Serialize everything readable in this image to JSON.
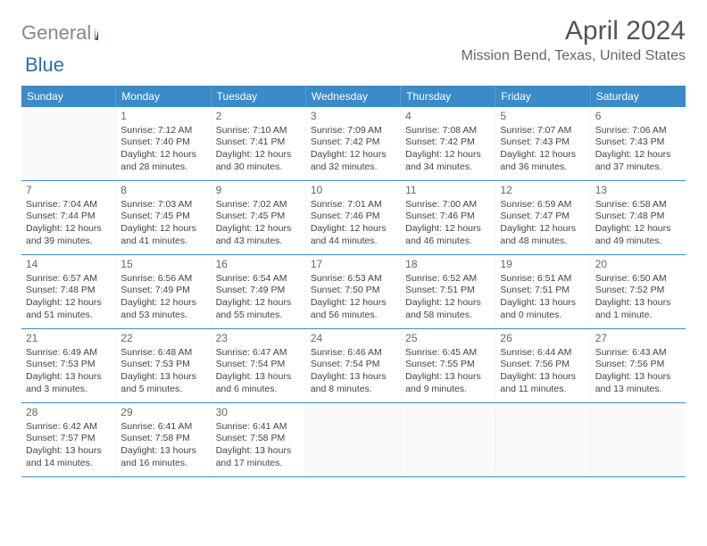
{
  "brand": {
    "part1": "General",
    "part2": "Blue"
  },
  "title": "April 2024",
  "location": "Mission Bend, Texas, United States",
  "colors": {
    "header_bg": "#3b8bc9",
    "header_text": "#ffffff",
    "border": "#3b8bc9",
    "text": "#444444",
    "title_text": "#555555",
    "location_text": "#666666",
    "logo_gray": "#888888",
    "logo_blue": "#2a6fb0",
    "background": "#ffffff"
  },
  "typography": {
    "title_fontsize": 30,
    "location_fontsize": 16,
    "dow_fontsize": 12,
    "cell_fontsize": 10.5
  },
  "days_of_week": [
    "Sunday",
    "Monday",
    "Tuesday",
    "Wednesday",
    "Thursday",
    "Friday",
    "Saturday"
  ],
  "labels": {
    "sunrise": "Sunrise:",
    "sunset": "Sunset:",
    "daylight": "Daylight:"
  },
  "weeks": [
    [
      null,
      {
        "n": "1",
        "sr": "7:12 AM",
        "ss": "7:40 PM",
        "dl": "12 hours and 28 minutes."
      },
      {
        "n": "2",
        "sr": "7:10 AM",
        "ss": "7:41 PM",
        "dl": "12 hours and 30 minutes."
      },
      {
        "n": "3",
        "sr": "7:09 AM",
        "ss": "7:42 PM",
        "dl": "12 hours and 32 minutes."
      },
      {
        "n": "4",
        "sr": "7:08 AM",
        "ss": "7:42 PM",
        "dl": "12 hours and 34 minutes."
      },
      {
        "n": "5",
        "sr": "7:07 AM",
        "ss": "7:43 PM",
        "dl": "12 hours and 36 minutes."
      },
      {
        "n": "6",
        "sr": "7:06 AM",
        "ss": "7:43 PM",
        "dl": "12 hours and 37 minutes."
      }
    ],
    [
      {
        "n": "7",
        "sr": "7:04 AM",
        "ss": "7:44 PM",
        "dl": "12 hours and 39 minutes."
      },
      {
        "n": "8",
        "sr": "7:03 AM",
        "ss": "7:45 PM",
        "dl": "12 hours and 41 minutes."
      },
      {
        "n": "9",
        "sr": "7:02 AM",
        "ss": "7:45 PM",
        "dl": "12 hours and 43 minutes."
      },
      {
        "n": "10",
        "sr": "7:01 AM",
        "ss": "7:46 PM",
        "dl": "12 hours and 44 minutes."
      },
      {
        "n": "11",
        "sr": "7:00 AM",
        "ss": "7:46 PM",
        "dl": "12 hours and 46 minutes."
      },
      {
        "n": "12",
        "sr": "6:59 AM",
        "ss": "7:47 PM",
        "dl": "12 hours and 48 minutes."
      },
      {
        "n": "13",
        "sr": "6:58 AM",
        "ss": "7:48 PM",
        "dl": "12 hours and 49 minutes."
      }
    ],
    [
      {
        "n": "14",
        "sr": "6:57 AM",
        "ss": "7:48 PM",
        "dl": "12 hours and 51 minutes."
      },
      {
        "n": "15",
        "sr": "6:56 AM",
        "ss": "7:49 PM",
        "dl": "12 hours and 53 minutes."
      },
      {
        "n": "16",
        "sr": "6:54 AM",
        "ss": "7:49 PM",
        "dl": "12 hours and 55 minutes."
      },
      {
        "n": "17",
        "sr": "6:53 AM",
        "ss": "7:50 PM",
        "dl": "12 hours and 56 minutes."
      },
      {
        "n": "18",
        "sr": "6:52 AM",
        "ss": "7:51 PM",
        "dl": "12 hours and 58 minutes."
      },
      {
        "n": "19",
        "sr": "6:51 AM",
        "ss": "7:51 PM",
        "dl": "13 hours and 0 minutes."
      },
      {
        "n": "20",
        "sr": "6:50 AM",
        "ss": "7:52 PM",
        "dl": "13 hours and 1 minute."
      }
    ],
    [
      {
        "n": "21",
        "sr": "6:49 AM",
        "ss": "7:53 PM",
        "dl": "13 hours and 3 minutes."
      },
      {
        "n": "22",
        "sr": "6:48 AM",
        "ss": "7:53 PM",
        "dl": "13 hours and 5 minutes."
      },
      {
        "n": "23",
        "sr": "6:47 AM",
        "ss": "7:54 PM",
        "dl": "13 hours and 6 minutes."
      },
      {
        "n": "24",
        "sr": "6:46 AM",
        "ss": "7:54 PM",
        "dl": "13 hours and 8 minutes."
      },
      {
        "n": "25",
        "sr": "6:45 AM",
        "ss": "7:55 PM",
        "dl": "13 hours and 9 minutes."
      },
      {
        "n": "26",
        "sr": "6:44 AM",
        "ss": "7:56 PM",
        "dl": "13 hours and 11 minutes."
      },
      {
        "n": "27",
        "sr": "6:43 AM",
        "ss": "7:56 PM",
        "dl": "13 hours and 13 minutes."
      }
    ],
    [
      {
        "n": "28",
        "sr": "6:42 AM",
        "ss": "7:57 PM",
        "dl": "13 hours and 14 minutes."
      },
      {
        "n": "29",
        "sr": "6:41 AM",
        "ss": "7:58 PM",
        "dl": "13 hours and 16 minutes."
      },
      {
        "n": "30",
        "sr": "6:41 AM",
        "ss": "7:58 PM",
        "dl": "13 hours and 17 minutes."
      },
      null,
      null,
      null,
      null
    ]
  ]
}
